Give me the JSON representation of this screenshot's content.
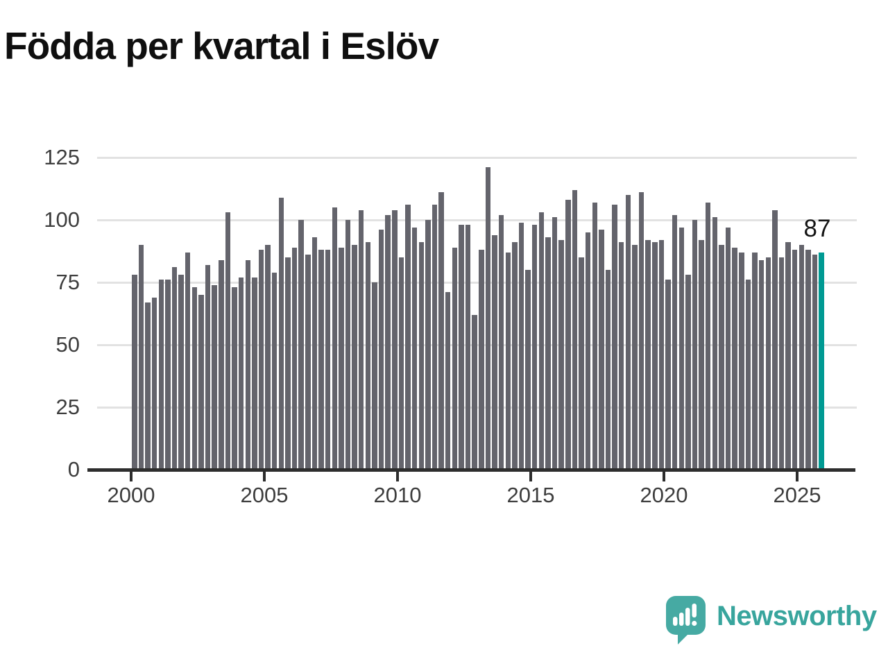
{
  "title": "Födda per kvartal i Eslöv",
  "annotation": {
    "label": "87"
  },
  "branding": {
    "name": "Newsworthy",
    "logo_icon": "speech-bubble-bar-chart-icon"
  },
  "colors": {
    "bar": "#64646c",
    "highlight": "#009a93",
    "grid": "#e2e2e2",
    "axis": "#2d2d2d",
    "tick_text": "#3d3d3d",
    "title_text": "#0f0f0f",
    "brand_teal": "#38a59d",
    "logo_square": "#46aaa3"
  },
  "chart_data": {
    "type": "bar",
    "title": "Födda per kvartal i Eslöv",
    "frequency": "quarterly",
    "highlight_last_bar": true,
    "last_value_label": "87",
    "xlabel": "",
    "ylabel": "",
    "ylim": [
      0,
      125
    ],
    "yticks": [
      0,
      25,
      50,
      75,
      100,
      125
    ],
    "xticks": [
      "2000",
      "2005",
      "2010",
      "2015",
      "2020",
      "2025"
    ],
    "grid": "horizontal",
    "legend": "none",
    "quarters": [
      "2000-Q1",
      "2000-Q2",
      "2000-Q3",
      "2000-Q4",
      "2001-Q1",
      "2001-Q2",
      "2001-Q3",
      "2001-Q4",
      "2002-Q1",
      "2002-Q2",
      "2002-Q3",
      "2002-Q4",
      "2003-Q1",
      "2003-Q2",
      "2003-Q3",
      "2003-Q4",
      "2004-Q1",
      "2004-Q2",
      "2004-Q3",
      "2004-Q4",
      "2005-Q1",
      "2005-Q2",
      "2005-Q3",
      "2005-Q4",
      "2006-Q1",
      "2006-Q2",
      "2006-Q3",
      "2006-Q4",
      "2007-Q1",
      "2007-Q2",
      "2007-Q3",
      "2007-Q4",
      "2008-Q1",
      "2008-Q2",
      "2008-Q3",
      "2008-Q4",
      "2009-Q1",
      "2009-Q2",
      "2009-Q3",
      "2009-Q4",
      "2010-Q1",
      "2010-Q2",
      "2010-Q3",
      "2010-Q4",
      "2011-Q1",
      "2011-Q2",
      "2011-Q3",
      "2011-Q4",
      "2012-Q1",
      "2012-Q2",
      "2012-Q3",
      "2012-Q4",
      "2013-Q1",
      "2013-Q2",
      "2013-Q3",
      "2013-Q4",
      "2014-Q1",
      "2014-Q2",
      "2014-Q3",
      "2014-Q4",
      "2015-Q1",
      "2015-Q2",
      "2015-Q3",
      "2015-Q4",
      "2016-Q1",
      "2016-Q2",
      "2016-Q3",
      "2016-Q4",
      "2017-Q1",
      "2017-Q2",
      "2017-Q3",
      "2017-Q4",
      "2018-Q1",
      "2018-Q2",
      "2018-Q3",
      "2018-Q4",
      "2019-Q1",
      "2019-Q2",
      "2019-Q3",
      "2019-Q4",
      "2020-Q1",
      "2020-Q2",
      "2020-Q3",
      "2020-Q4",
      "2021-Q1",
      "2021-Q2",
      "2021-Q3",
      "2021-Q4",
      "2022-Q1",
      "2022-Q2",
      "2022-Q3",
      "2022-Q4",
      "2023-Q1",
      "2023-Q2",
      "2023-Q3",
      "2023-Q4",
      "2024-Q1",
      "2024-Q2",
      "2024-Q3",
      "2024-Q4",
      "2025-Q1",
      "2025-Q2",
      "2025-Q3",
      "2025-Q4"
    ],
    "values": [
      78,
      90,
      67,
      69,
      76,
      76,
      81,
      78,
      87,
      73,
      70,
      82,
      74,
      84,
      103,
      73,
      77,
      84,
      77,
      88,
      90,
      79,
      109,
      85,
      89,
      100,
      86,
      93,
      88,
      88,
      105,
      89,
      100,
      90,
      104,
      91,
      75,
      96,
      102,
      104,
      85,
      106,
      97,
      91,
      100,
      106,
      111,
      71,
      89,
      98,
      98,
      62,
      88,
      121,
      94,
      102,
      87,
      91,
      99,
      80,
      98,
      103,
      93,
      101,
      92,
      108,
      112,
      85,
      95,
      107,
      96,
      80,
      106,
      91,
      110,
      90,
      111,
      92,
      91,
      92,
      76,
      102,
      97,
      78,
      100,
      92,
      107,
      101,
      90,
      97,
      89,
      87,
      76,
      87,
      84,
      85,
      104,
      85,
      91,
      88,
      90,
      88,
      86,
      87
    ]
  }
}
